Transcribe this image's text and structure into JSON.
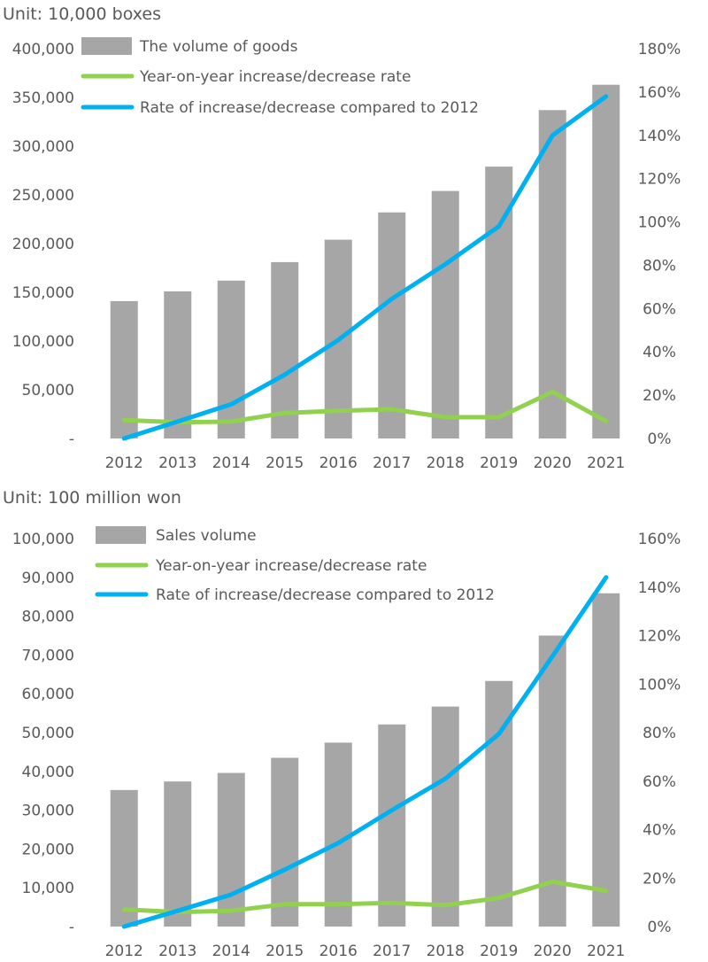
{
  "chart_data": [
    {
      "type": "bar",
      "unit_label": "Unit: 10,000 boxes",
      "categories": [
        "2012",
        "2013",
        "2014",
        "2015",
        "2016",
        "2017",
        "2018",
        "2019",
        "2020",
        "2021"
      ],
      "series": [
        {
          "name": "The volume of goods",
          "kind": "bar",
          "axis": "left",
          "color": "#a6a6a6",
          "values": [
            141000,
            151000,
            162000,
            181000,
            204000,
            232000,
            254000,
            279000,
            337000,
            363000
          ]
        },
        {
          "name": "Year-on-year increase/decrease rate",
          "kind": "line",
          "axis": "right",
          "color": "#92d050",
          "values": [
            8.5,
            7.5,
            7.8,
            11.8,
            12.8,
            13.5,
            9.8,
            9.8,
            21.5,
            8.0
          ]
        },
        {
          "name": "Rate of increase/decrease compared to 2012",
          "kind": "line",
          "axis": "right",
          "color": "#00b0f0",
          "values": [
            0,
            7.8,
            15.8,
            29.5,
            45.5,
            64.5,
            80.5,
            98.0,
            140.0,
            158.0
          ]
        }
      ],
      "left_axis": {
        "ticks": [
          0,
          50000,
          100000,
          150000,
          200000,
          250000,
          300000,
          350000,
          400000
        ],
        "tick_labels": [
          "-",
          "50,000",
          "100,000",
          "150,000",
          "200,000",
          "250,000",
          "300,000",
          "350,000",
          "400,000"
        ],
        "ylim": [
          0,
          400000
        ]
      },
      "right_axis": {
        "ticks": [
          0,
          20,
          40,
          60,
          80,
          100,
          120,
          140,
          160,
          180
        ],
        "tick_labels": [
          "0%",
          "20%",
          "40%",
          "60%",
          "80%",
          "100%",
          "120%",
          "140%",
          "160%",
          "180%"
        ],
        "ylim": [
          0,
          180
        ]
      },
      "legend_position": "top-left",
      "grid": false
    },
    {
      "type": "bar",
      "unit_label": "Unit: 100 million won",
      "categories": [
        "2012",
        "2013",
        "2014",
        "2015",
        "2016",
        "2017",
        "2018",
        "2019",
        "2020",
        "2021"
      ],
      "series": [
        {
          "name": "Sales volume",
          "kind": "bar",
          "axis": "left",
          "color": "#a6a6a6",
          "values": [
            35200,
            37400,
            39600,
            43500,
            47400,
            52100,
            56700,
            63300,
            75000,
            85900
          ]
        },
        {
          "name": "Year-on-year increase/decrease rate",
          "kind": "line",
          "axis": "right",
          "color": "#92d050",
          "values": [
            7.0,
            6.0,
            6.5,
            9.2,
            9.2,
            9.8,
            8.8,
            11.8,
            18.5,
            14.8
          ]
        },
        {
          "name": "Rate of increase/decrease compared to 2012",
          "kind": "line",
          "axis": "right",
          "color": "#00b0f0",
          "values": [
            0,
            6.5,
            13.2,
            23.5,
            34.5,
            48.0,
            61.0,
            79.5,
            111.5,
            144.0
          ]
        }
      ],
      "left_axis": {
        "ticks": [
          0,
          10000,
          20000,
          30000,
          40000,
          50000,
          60000,
          70000,
          80000,
          90000,
          100000
        ],
        "tick_labels": [
          "-",
          "10,000",
          "20,000",
          "30,000",
          "40,000",
          "50,000",
          "60,000",
          "70,000",
          "80,000",
          "90,000",
          "100,000"
        ],
        "ylim": [
          0,
          100000
        ]
      },
      "right_axis": {
        "ticks": [
          0,
          20,
          40,
          60,
          80,
          100,
          120,
          140,
          160
        ],
        "tick_labels": [
          "0%",
          "20%",
          "40%",
          "60%",
          "80%",
          "100%",
          "120%",
          "140%",
          "160%"
        ],
        "ylim": [
          0,
          160
        ]
      },
      "legend_position": "top-left",
      "grid": false
    }
  ]
}
